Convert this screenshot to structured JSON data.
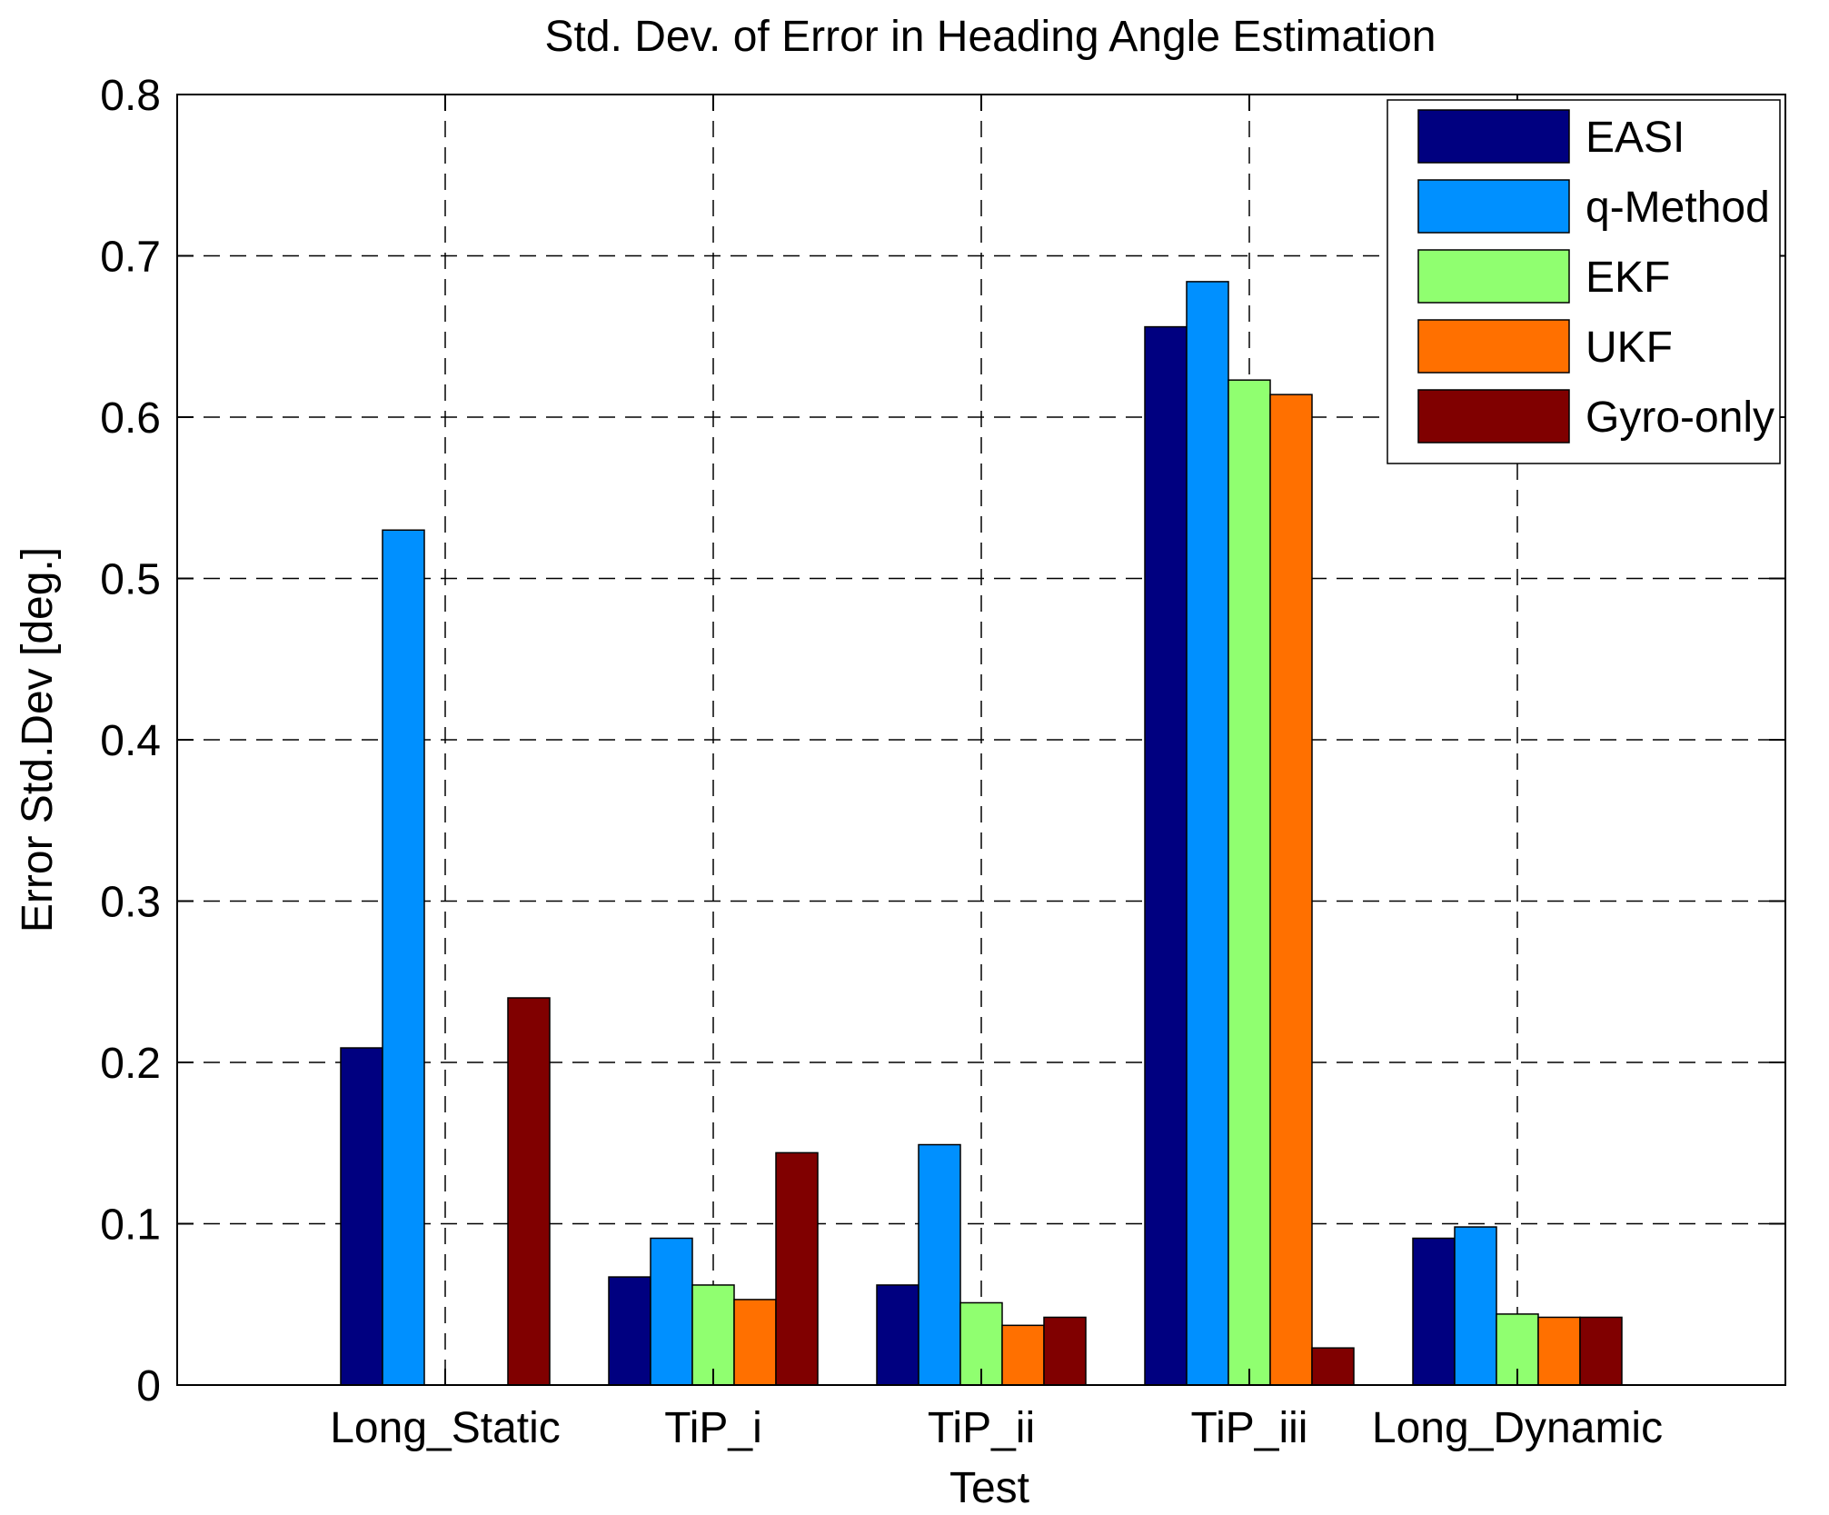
{
  "chart_data": {
    "type": "bar",
    "title": "Std. Dev. of Error in Heading Angle Estimation",
    "xlabel": "Test",
    "ylabel": "Error Std.Dev [deg.]",
    "ylim": [
      0,
      0.8
    ],
    "yticks": [
      0,
      0.1,
      0.2,
      0.3,
      0.4,
      0.5,
      0.6,
      0.7,
      0.8
    ],
    "ytick_labels": [
      "0",
      "0.1",
      "0.2",
      "0.3",
      "0.4",
      "0.5",
      "0.6",
      "0.7",
      "0.8"
    ],
    "grid": true,
    "legend_position": "top-right",
    "categories": [
      "Long_Static",
      "TiP_i",
      "TiP_ii",
      "TiP_iii",
      "Long_Dynamic"
    ],
    "series": [
      {
        "name": "EASI",
        "color": "#000080",
        "values": [
          0.209,
          0.067,
          0.062,
          0.656,
          0.091
        ]
      },
      {
        "name": "q-Method",
        "color": "#0090ff",
        "values": [
          0.53,
          0.091,
          0.149,
          0.684,
          0.098
        ]
      },
      {
        "name": "EKF",
        "color": "#90ff70",
        "values": [
          0,
          0.062,
          0.051,
          0.623,
          0.044
        ]
      },
      {
        "name": "UKF",
        "color": "#ff7000",
        "values": [
          0,
          0.053,
          0.037,
          0.614,
          0.042
        ]
      },
      {
        "name": "Gyro-only",
        "color": "#800000",
        "values": [
          0.24,
          0.144,
          0.042,
          0.023,
          0.042
        ]
      }
    ]
  }
}
